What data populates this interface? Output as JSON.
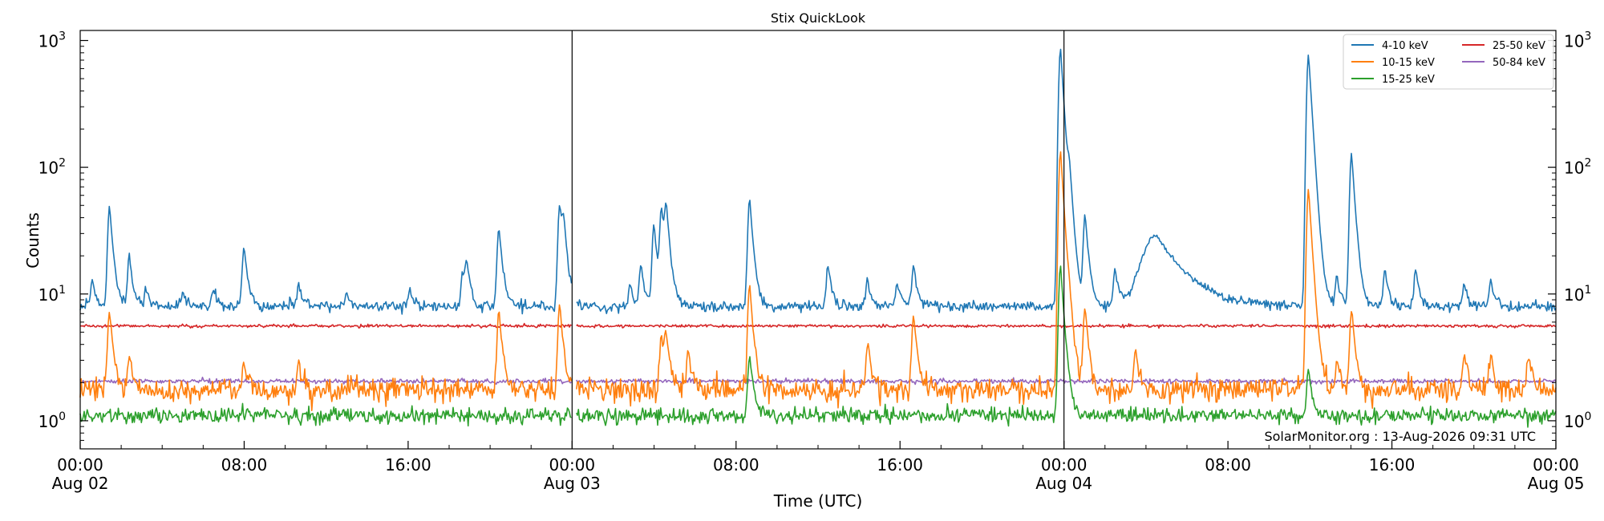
{
  "chart_data": {
    "type": "line",
    "title": "Stix QuickLook",
    "xlabel": "Time (UTC)",
    "ylabel": "Counts",
    "yscale": "log",
    "ylim": [
      0.6,
      1200
    ],
    "xlim": [
      "2026-08-02T00:00",
      "2026-08-05T00:00"
    ],
    "grid": false,
    "legend_position": "top-right",
    "x_ticks": [
      {
        "time": "2026-08-02T00:00",
        "label": "00:00",
        "date": "Aug 02"
      },
      {
        "time": "2026-08-02T08:00",
        "label": "08:00",
        "date": ""
      },
      {
        "time": "2026-08-02T16:00",
        "label": "16:00",
        "date": ""
      },
      {
        "time": "2026-08-03T00:00",
        "label": "00:00",
        "date": "Aug 03"
      },
      {
        "time": "2026-08-03T08:00",
        "label": "08:00",
        "date": ""
      },
      {
        "time": "2026-08-03T16:00",
        "label": "16:00",
        "date": ""
      },
      {
        "time": "2026-08-04T00:00",
        "label": "00:00",
        "date": "Aug 04"
      },
      {
        "time": "2026-08-04T08:00",
        "label": "08:00",
        "date": ""
      },
      {
        "time": "2026-08-04T16:00",
        "label": "16:00",
        "date": ""
      },
      {
        "time": "2026-08-05T00:00",
        "label": "00:00",
        "date": "Aug 05"
      }
    ],
    "y_ticks": [
      {
        "value": 1,
        "base": "10",
        "exp": "0"
      },
      {
        "value": 10,
        "base": "10",
        "exp": "1"
      },
      {
        "value": 100,
        "base": "10",
        "exp": "2"
      },
      {
        "value": 1000,
        "base": "10",
        "exp": "3"
      }
    ],
    "day_boundaries": [
      "2026-08-03T00:00",
      "2026-08-04T00:00"
    ],
    "data_gap": {
      "start": "2026-08-02T23:59",
      "end": "2026-08-03T00:12"
    },
    "annotation": "SolarMonitor.org : 13-Aug-2026 09:31 UTC",
    "series": [
      {
        "name": "4-10 keV",
        "color": "#1f77b4",
        "baseline": 8.0,
        "noise": 0.05,
        "peaks": [
          {
            "time": "2026-08-02T01:26",
            "value": 50
          },
          {
            "time": "2026-08-02T00:36",
            "value": 13
          },
          {
            "time": "2026-08-02T02:24",
            "value": 20
          },
          {
            "time": "2026-08-02T03:12",
            "value": 11
          },
          {
            "time": "2026-08-02T05:00",
            "value": 10.5
          },
          {
            "time": "2026-08-02T06:30",
            "value": 11
          },
          {
            "time": "2026-08-02T08:00",
            "value": 24
          },
          {
            "time": "2026-08-02T10:40",
            "value": 12
          },
          {
            "time": "2026-08-02T13:00",
            "value": 10.5
          },
          {
            "time": "2026-08-02T16:05",
            "value": 10.5
          },
          {
            "time": "2026-08-02T18:40",
            "value": 15
          },
          {
            "time": "2026-08-02T18:52",
            "value": 17
          },
          {
            "time": "2026-08-02T20:26",
            "value": 34
          },
          {
            "time": "2026-08-02T23:24",
            "value": 51
          },
          {
            "time": "2026-08-02T23:36",
            "value": 30
          },
          {
            "time": "2026-08-03T02:50",
            "value": 12
          },
          {
            "time": "2026-08-03T03:22",
            "value": 17
          },
          {
            "time": "2026-08-03T04:00",
            "value": 36
          },
          {
            "time": "2026-08-03T04:22",
            "value": 45
          },
          {
            "time": "2026-08-03T04:36",
            "value": 44
          },
          {
            "time": "2026-08-03T08:40",
            "value": 57
          },
          {
            "time": "2026-08-03T12:30",
            "value": 17
          },
          {
            "time": "2026-08-03T14:25",
            "value": 13
          },
          {
            "time": "2026-08-03T15:52",
            "value": 12
          },
          {
            "time": "2026-08-03T16:40",
            "value": 17
          },
          {
            "time": "2026-08-03T23:50",
            "value": 870
          },
          {
            "time": "2026-08-04T00:16",
            "value": 58
          },
          {
            "time": "2026-08-04T01:02",
            "value": 42
          },
          {
            "time": "2026-08-04T02:30",
            "value": 16
          },
          {
            "time": "2026-08-04T04:30",
            "value": 29,
            "width_min": 55
          },
          {
            "time": "2026-08-04T11:56",
            "value": 780
          },
          {
            "time": "2026-08-04T13:20",
            "value": 14
          },
          {
            "time": "2026-08-04T14:02",
            "value": 130
          },
          {
            "time": "2026-08-04T15:40",
            "value": 16
          },
          {
            "time": "2026-08-04T17:10",
            "value": 16
          },
          {
            "time": "2026-08-04T19:32",
            "value": 12
          },
          {
            "time": "2026-08-04T20:50",
            "value": 13
          }
        ]
      },
      {
        "name": "10-15 keV",
        "color": "#ff7f0e",
        "baseline": 1.75,
        "noise": 0.11,
        "peaks": [
          {
            "time": "2026-08-02T01:26",
            "value": 7.5
          },
          {
            "time": "2026-08-02T02:24",
            "value": 3.3
          },
          {
            "time": "2026-08-02T08:00",
            "value": 3.0
          },
          {
            "time": "2026-08-02T10:40",
            "value": 3.0
          },
          {
            "time": "2026-08-02T20:26",
            "value": 7.5
          },
          {
            "time": "2026-08-02T23:24",
            "value": 8.5
          },
          {
            "time": "2026-08-03T04:22",
            "value": 4.8
          },
          {
            "time": "2026-08-03T04:36",
            "value": 4.6
          },
          {
            "time": "2026-08-03T05:40",
            "value": 3.6
          },
          {
            "time": "2026-08-03T08:40",
            "value": 12
          },
          {
            "time": "2026-08-03T14:25",
            "value": 4.0
          },
          {
            "time": "2026-08-03T16:40",
            "value": 7.0
          },
          {
            "time": "2026-08-03T23:50",
            "value": 135
          },
          {
            "time": "2026-08-04T00:16",
            "value": 4.0
          },
          {
            "time": "2026-08-04T01:02",
            "value": 7.8
          },
          {
            "time": "2026-08-04T03:30",
            "value": 3.5
          },
          {
            "time": "2026-08-04T11:56",
            "value": 68
          },
          {
            "time": "2026-08-04T13:20",
            "value": 3.0
          },
          {
            "time": "2026-08-04T14:02",
            "value": 7.5
          },
          {
            "time": "2026-08-04T19:32",
            "value": 3.3
          },
          {
            "time": "2026-08-04T20:50",
            "value": 3.3
          },
          {
            "time": "2026-08-04T22:40",
            "value": 3.5
          }
        ]
      },
      {
        "name": "15-25 keV",
        "color": "#2ca02c",
        "baseline": 1.1,
        "noise": 0.07,
        "peaks": [
          {
            "time": "2026-08-03T08:40",
            "value": 3.3
          },
          {
            "time": "2026-08-03T23:50",
            "value": 17
          },
          {
            "time": "2026-08-04T11:56",
            "value": 2.5
          }
        ]
      },
      {
        "name": "25-50 keV",
        "color": "#d62728",
        "baseline": 5.6,
        "noise": 0.013,
        "peaks": []
      },
      {
        "name": "50-84 keV",
        "color": "#9467bd",
        "baseline": 2.05,
        "noise": 0.02,
        "peaks": []
      }
    ]
  }
}
